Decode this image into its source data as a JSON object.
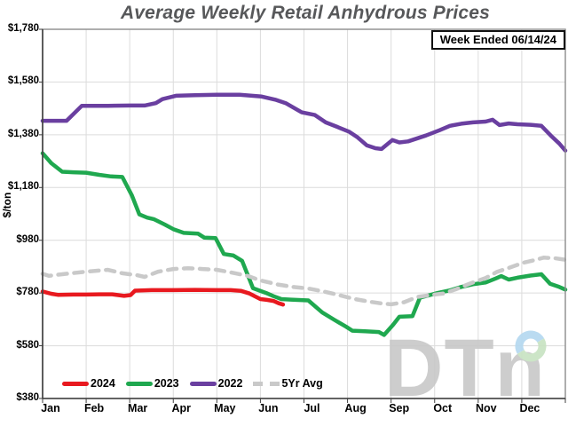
{
  "chart": {
    "title": "Average Weekly Retail Anhydrous Prices",
    "badge": "Week Ended 06/14/24",
    "watermark_text": "DTn",
    "watermark_colors": {
      "letters": "#c9c9c9",
      "ring_blue": "#b5d9f0",
      "ring_green": "#c8e3c3"
    },
    "title_color": "#57585a"
  },
  "chart_data": {
    "type": "line",
    "title": "Average Weekly Retail Anhydrous Prices",
    "xlabel": "",
    "ylabel": "$/ton",
    "ylim": [
      380,
      1780
    ],
    "x_range_months": [
      0,
      12
    ],
    "grid": true,
    "legend_position": "bottom-left-inside",
    "y_ticks": [
      {
        "label": "$1,780",
        "value": 1780
      },
      {
        "label": "$1,580",
        "value": 1580
      },
      {
        "label": "$1,380",
        "value": 1380
      },
      {
        "label": "$1,180",
        "value": 1180
      },
      {
        "label": "$980",
        "value": 980
      },
      {
        "label": "$780",
        "value": 780
      },
      {
        "label": "$580",
        "value": 580
      },
      {
        "label": "$380",
        "value": 380
      }
    ],
    "x_ticks": [
      "Jan",
      "Feb",
      "Mar",
      "Apr",
      "May",
      "Jun",
      "Jul",
      "Aug",
      "Sep",
      "Oct",
      "Nov",
      "Dec"
    ],
    "series": [
      {
        "name": "2024",
        "color": "#e8191f",
        "style": "solid",
        "points": [
          [
            0,
            786
          ],
          [
            0.2,
            777
          ],
          [
            0.35,
            773
          ],
          [
            0.7,
            774
          ],
          [
            1,
            774
          ],
          [
            1.3,
            775
          ],
          [
            1.6,
            775
          ],
          [
            1.87,
            769
          ],
          [
            2.02,
            772
          ],
          [
            2.12,
            789
          ],
          [
            2.5,
            791
          ],
          [
            3,
            791
          ],
          [
            3.5,
            792
          ],
          [
            4,
            791
          ],
          [
            4.32,
            791
          ],
          [
            4.56,
            788
          ],
          [
            4.75,
            778
          ],
          [
            5,
            757
          ],
          [
            5.15,
            754
          ],
          [
            5.3,
            750
          ],
          [
            5.42,
            741
          ],
          [
            5.52,
            736
          ]
        ]
      },
      {
        "name": "2023",
        "color": "#1fa84f",
        "style": "solid",
        "points": [
          [
            0,
            1310
          ],
          [
            0.2,
            1272
          ],
          [
            0.45,
            1240
          ],
          [
            0.7,
            1238
          ],
          [
            1,
            1236
          ],
          [
            1.3,
            1228
          ],
          [
            1.57,
            1222
          ],
          [
            1.83,
            1220
          ],
          [
            2.05,
            1150
          ],
          [
            2.22,
            1078
          ],
          [
            2.4,
            1066
          ],
          [
            2.55,
            1060
          ],
          [
            2.8,
            1040
          ],
          [
            3,
            1022
          ],
          [
            3.24,
            1008
          ],
          [
            3.57,
            1005
          ],
          [
            3.71,
            990
          ],
          [
            3.97,
            988
          ],
          [
            4.16,
            928
          ],
          [
            4.38,
            922
          ],
          [
            4.58,
            902
          ],
          [
            4.83,
            798
          ],
          [
            5.13,
            780
          ],
          [
            5.3,
            768
          ],
          [
            5.48,
            757
          ],
          [
            5.7,
            755
          ],
          [
            6.1,
            752
          ],
          [
            6.42,
            706
          ],
          [
            6.7,
            678
          ],
          [
            6.97,
            652
          ],
          [
            7.11,
            637
          ],
          [
            7.4,
            635
          ],
          [
            7.72,
            632
          ],
          [
            7.84,
            621
          ],
          [
            8.05,
            660
          ],
          [
            8.19,
            690
          ],
          [
            8.49,
            692
          ],
          [
            8.66,
            762
          ],
          [
            9.07,
            780
          ],
          [
            9.35,
            790
          ],
          [
            9.61,
            803
          ],
          [
            9.88,
            813
          ],
          [
            10.17,
            820
          ],
          [
            10.4,
            835
          ],
          [
            10.53,
            844
          ],
          [
            10.7,
            831
          ],
          [
            10.9,
            838
          ],
          [
            11.2,
            846
          ],
          [
            11.45,
            851
          ],
          [
            11.65,
            815
          ],
          [
            11.86,
            803
          ],
          [
            12,
            793
          ]
        ]
      },
      {
        "name": "2022",
        "color": "#6a3fa0",
        "style": "solid",
        "points": [
          [
            0,
            1433
          ],
          [
            0.55,
            1433
          ],
          [
            0.9,
            1490
          ],
          [
            1.5,
            1490
          ],
          [
            2,
            1491
          ],
          [
            2.34,
            1491
          ],
          [
            2.6,
            1500
          ],
          [
            2.75,
            1515
          ],
          [
            3.06,
            1528
          ],
          [
            3.5,
            1530
          ],
          [
            4,
            1532
          ],
          [
            4.52,
            1532
          ],
          [
            5.03,
            1525
          ],
          [
            5.34,
            1513
          ],
          [
            5.58,
            1500
          ],
          [
            5.95,
            1465
          ],
          [
            6.25,
            1455
          ],
          [
            6.5,
            1427
          ],
          [
            6.76,
            1410
          ],
          [
            7.03,
            1392
          ],
          [
            7.23,
            1370
          ],
          [
            7.44,
            1340
          ],
          [
            7.64,
            1329
          ],
          [
            7.78,
            1326
          ],
          [
            8.03,
            1360
          ],
          [
            8.19,
            1351
          ],
          [
            8.39,
            1355
          ],
          [
            8.8,
            1377
          ],
          [
            9.11,
            1397
          ],
          [
            9.35,
            1414
          ],
          [
            9.61,
            1422
          ],
          [
            9.88,
            1427
          ],
          [
            10.17,
            1430
          ],
          [
            10.33,
            1437
          ],
          [
            10.49,
            1417
          ],
          [
            10.7,
            1423
          ],
          [
            10.9,
            1420
          ],
          [
            11.2,
            1418
          ],
          [
            11.45,
            1414
          ],
          [
            11.69,
            1373
          ],
          [
            11.86,
            1347
          ],
          [
            12,
            1320
          ]
        ]
      },
      {
        "name": "5Yr Avg",
        "color": "#c9c9c9",
        "style": "dashed",
        "points": [
          [
            0,
            853
          ],
          [
            0.14,
            845
          ],
          [
            0.45,
            851
          ],
          [
            1,
            861
          ],
          [
            1.5,
            868
          ],
          [
            1.83,
            855
          ],
          [
            2.18,
            847
          ],
          [
            2.34,
            841
          ],
          [
            2.65,
            861
          ],
          [
            3,
            871
          ],
          [
            3.34,
            874
          ],
          [
            3.67,
            871
          ],
          [
            4,
            868
          ],
          [
            4.36,
            857
          ],
          [
            4.7,
            845
          ],
          [
            5,
            828
          ],
          [
            5.4,
            812
          ],
          [
            5.75,
            803
          ],
          [
            6.1,
            797
          ],
          [
            6.45,
            786
          ],
          [
            6.8,
            772
          ],
          [
            7.17,
            757
          ],
          [
            7.5,
            747
          ],
          [
            7.75,
            741
          ],
          [
            8,
            737
          ],
          [
            8.3,
            745
          ],
          [
            8.6,
            765
          ],
          [
            8.9,
            772
          ],
          [
            9.2,
            778
          ],
          [
            9.5,
            795
          ],
          [
            9.8,
            815
          ],
          [
            10.17,
            837
          ],
          [
            10.43,
            860
          ],
          [
            10.7,
            875
          ],
          [
            11.04,
            895
          ],
          [
            11.3,
            905
          ],
          [
            11.5,
            914
          ],
          [
            11.75,
            912
          ],
          [
            12,
            906
          ]
        ]
      }
    ]
  }
}
